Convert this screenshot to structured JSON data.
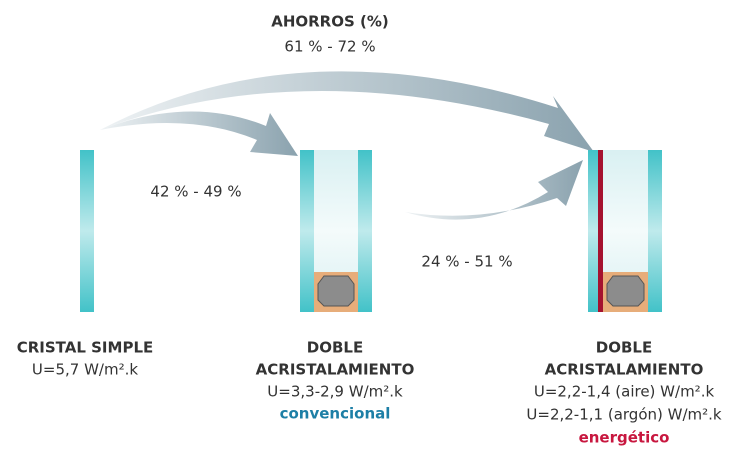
{
  "header": {
    "title": "AHORROS (%)",
    "range": "61 % - 72 %"
  },
  "savings": [
    "42 % - 49 %",
    "24 % - 51 %"
  ],
  "panels": [
    {
      "title": [
        "CRISTAL SIMPLE"
      ],
      "lines": [
        "U=5,7 W/m².k"
      ]
    },
    {
      "title": [
        "DOBLE",
        "ACRISTALAMIENTO"
      ],
      "lines": [
        "U=3,3-2,9 W/m².k"
      ],
      "tag": "convencional"
    },
    {
      "title": [
        "DOBLE",
        "ACRISTALAMIENTO"
      ],
      "lines": [
        "U=2,2-1,4 (aire) W/m².k",
        "U=2,2-1,1 (argón) W/m².k"
      ],
      "tag": "energético"
    }
  ]
}
